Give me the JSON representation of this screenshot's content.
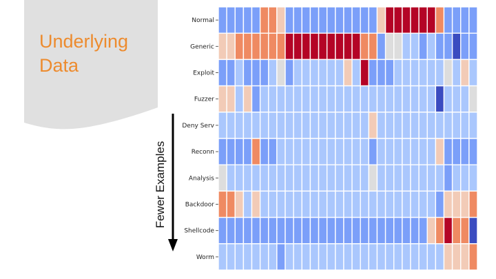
{
  "slide": {
    "title_line1": "Underlying",
    "title_line2": "Data",
    "axis_annotation": "Fewer Examples"
  },
  "colors": {
    "title": "#ED8B2E",
    "banner": "#E0E0E0",
    "palette": [
      "#3B4CC0",
      "#7B9FF9",
      "#AAC7FD",
      "#DDDDDD",
      "#F2CBB7",
      "#EF8A62",
      "#B40426"
    ]
  },
  "chart_data": {
    "type": "heatmap",
    "title": "",
    "xlabel": "",
    "ylabel": "Fewer Examples",
    "rows": [
      "Normal",
      "Generic",
      "Exploit",
      "Fuzzer",
      "Deny Serv",
      "Reconn",
      "Analysis",
      "Backdoor",
      "Shellcode",
      "Worm"
    ],
    "n_columns": 31,
    "scale": "diverging, -3 (deep blue) to 3 (deep red), 0 = neutral gray",
    "values": [
      [
        -2,
        -2,
        -2,
        -2,
        -2,
        2,
        2,
        1,
        -2,
        -2,
        -2,
        -2,
        -2,
        -2,
        -2,
        -2,
        -2,
        -2,
        -2,
        1,
        3,
        3,
        3,
        3,
        3,
        3,
        2,
        -2,
        -2,
        -2,
        -2
      ],
      [
        1,
        1,
        2,
        2,
        2,
        2,
        2,
        2,
        3,
        3,
        3,
        3,
        3,
        3,
        3,
        3,
        3,
        2,
        2,
        -2,
        0,
        0,
        -1,
        -1,
        -2,
        -1,
        -2,
        -2,
        -3,
        -2,
        -2
      ],
      [
        -2,
        -2,
        -1,
        -2,
        -2,
        -2,
        -1,
        0,
        -2,
        -1,
        -1,
        -1,
        -1,
        -1,
        -1,
        1,
        -1,
        3,
        -2,
        -2,
        -2,
        -1,
        -1,
        -1,
        -1,
        -1,
        -1,
        0,
        -1,
        1,
        -1
      ],
      [
        1,
        1,
        -1,
        1,
        -2,
        -1,
        -1,
        -1,
        -1,
        -1,
        -1,
        -1,
        -1,
        -1,
        -1,
        -1,
        -1,
        -1,
        -1,
        -1,
        -1,
        -1,
        -1,
        -1,
        -1,
        -1,
        -3,
        -1,
        -1,
        -1,
        0
      ],
      [
        -1,
        -1,
        -1,
        -1,
        -1,
        -1,
        -1,
        -1,
        -1,
        -1,
        -1,
        -1,
        -1,
        -1,
        -1,
        -1,
        -1,
        -1,
        1,
        -1,
        -1,
        -1,
        -1,
        -1,
        -1,
        -1,
        -1,
        -1,
        -1,
        -1,
        -1
      ],
      [
        -2,
        -2,
        -2,
        -2,
        2,
        -2,
        -2,
        -1,
        -1,
        -1,
        -1,
        -1,
        -1,
        -1,
        -1,
        -1,
        -1,
        -1,
        -2,
        -1,
        -1,
        -1,
        -1,
        -1,
        -1,
        -1,
        1,
        -2,
        -2,
        -2,
        -2
      ],
      [
        0,
        -1,
        -1,
        -1,
        -1,
        -1,
        -1,
        -1,
        -1,
        -1,
        -1,
        -1,
        -1,
        -1,
        -1,
        -1,
        -1,
        -1,
        0,
        -1,
        -1,
        -1,
        -1,
        -1,
        -1,
        -1,
        -1,
        -2,
        -1,
        -1,
        -1
      ],
      [
        2,
        2,
        1,
        -1,
        1,
        -1,
        -1,
        -1,
        -1,
        -1,
        -1,
        -1,
        -1,
        -1,
        -1,
        -1,
        -1,
        -1,
        -1,
        -1,
        -1,
        -1,
        -1,
        -1,
        -1,
        -1,
        -2,
        1,
        1,
        1,
        2
      ],
      [
        -2,
        -2,
        -2,
        -2,
        -2,
        -2,
        -2,
        -2,
        -2,
        -2,
        -2,
        -2,
        -2,
        -2,
        -2,
        -2,
        -2,
        -2,
        -2,
        -2,
        -2,
        -2,
        -2,
        -2,
        -2,
        1,
        2,
        3,
        2,
        2,
        -3
      ],
      [
        -1,
        -1,
        -1,
        -1,
        -1,
        -1,
        -1,
        -2,
        -1,
        -1,
        -1,
        -1,
        -1,
        -1,
        -1,
        -1,
        -1,
        -1,
        -1,
        -1,
        -1,
        -1,
        -1,
        -1,
        -1,
        -1,
        -1,
        1,
        1,
        1,
        2
      ]
    ]
  }
}
